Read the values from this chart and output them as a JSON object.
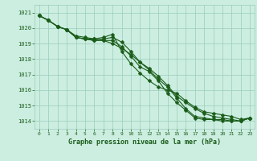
{
  "x": [
    0,
    1,
    2,
    3,
    4,
    5,
    6,
    7,
    8,
    9,
    10,
    11,
    12,
    13,
    14,
    15,
    16,
    17,
    18,
    19,
    20,
    21,
    22,
    23
  ],
  "series": [
    [
      1020.8,
      1020.5,
      1020.1,
      1019.9,
      1019.4,
      1019.3,
      1019.2,
      1019.2,
      1019.2,
      1018.8,
      1018.2,
      1017.5,
      1017.2,
      1016.6,
      1015.8,
      1015.2,
      1014.7,
      1014.2,
      1014.1,
      1014.1,
      1014.0,
      1014.0,
      1014.0,
      1014.2
    ],
    [
      1020.8,
      1020.5,
      1020.1,
      1019.9,
      1019.4,
      1019.3,
      1019.2,
      1019.3,
      1019.4,
      1019.1,
      1018.5,
      1017.8,
      1017.4,
      1016.9,
      1016.3,
      1015.6,
      1015.2,
      1014.8,
      1014.5,
      1014.3,
      1014.2,
      1014.1,
      1014.0,
      1014.2
    ],
    [
      1020.8,
      1020.5,
      1020.1,
      1019.9,
      1019.4,
      1019.3,
      1019.3,
      1019.4,
      1019.6,
      1018.5,
      1017.7,
      1017.1,
      1016.6,
      1016.2,
      1016.0,
      1015.8,
      1015.3,
      1014.9,
      1014.6,
      1014.5,
      1014.4,
      1014.3,
      1014.1,
      1014.2
    ],
    [
      1020.8,
      1020.5,
      1020.1,
      1019.9,
      1019.5,
      1019.4,
      1019.3,
      1019.2,
      1019.0,
      1018.7,
      1018.3,
      1017.8,
      1017.3,
      1016.7,
      1016.2,
      1015.5,
      1014.8,
      1014.3,
      1014.2,
      1014.1,
      1014.1,
      1014.0,
      1014.0,
      1014.2
    ]
  ],
  "line_color": "#1a5c1a",
  "marker_color": "#1a5c1a",
  "bg_color": "#cceee0",
  "grid_color": "#99ccbb",
  "text_color": "#1a5c1a",
  "xlabel": "Graphe pression niveau de la mer (hPa)",
  "ylim": [
    1013.5,
    1021.5
  ],
  "xlim": [
    -0.5,
    23.5
  ],
  "yticks": [
    1014,
    1015,
    1016,
    1017,
    1018,
    1019,
    1020,
    1021
  ],
  "xticks": [
    0,
    1,
    2,
    3,
    4,
    5,
    6,
    7,
    8,
    9,
    10,
    11,
    12,
    13,
    14,
    15,
    16,
    17,
    18,
    19,
    20,
    21,
    22,
    23
  ],
  "marker_size": 2.5,
  "line_width": 0.8
}
